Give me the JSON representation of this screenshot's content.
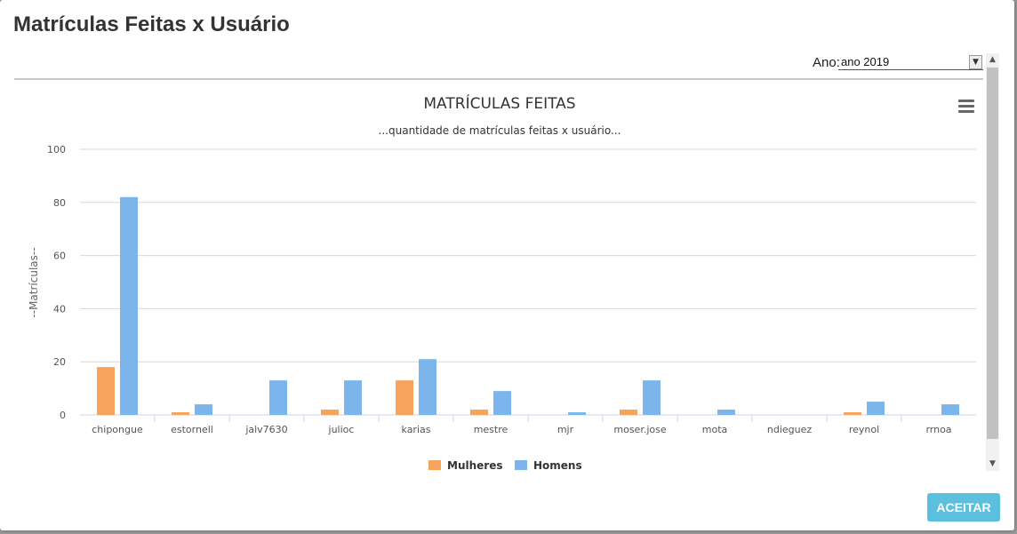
{
  "modal": {
    "title": "Matrículas Feitas x Usuário",
    "accept_label": "ACEITAR"
  },
  "filter": {
    "label": "Ano:",
    "selected": "ano 2019",
    "arrow_icon": "chevron-down-icon"
  },
  "colors": {
    "mulheres": "#f7a35c",
    "homens": "#7cb5ec",
    "accept": "#5bc0de"
  },
  "chart_data": {
    "type": "bar",
    "title": "MATRÍCULAS FEITAS",
    "subtitle": "...quantidade de matrículas feitas x usuário...",
    "xlabel": "",
    "ylabel": "--Matrículas--",
    "ylim": [
      0,
      100
    ],
    "yticks": [
      0,
      20,
      40,
      60,
      80,
      100
    ],
    "grid": true,
    "legend": "bottom-center",
    "categories": [
      "chipongue",
      "estornell",
      "jalv7630",
      "julioc",
      "karias",
      "mestre",
      "mjr",
      "moser.jose",
      "mota",
      "ndieguez",
      "reynol",
      "rrnoa"
    ],
    "series": [
      {
        "name": "Mulheres",
        "color": "#f7a35c",
        "values": [
          18,
          1,
          0,
          2,
          13,
          2,
          0,
          2,
          0,
          0,
          1,
          0
        ]
      },
      {
        "name": "Homens",
        "color": "#7cb5ec",
        "values": [
          82,
          4,
          13,
          13,
          21,
          9,
          1,
          13,
          2,
          0,
          5,
          4
        ]
      }
    ]
  }
}
